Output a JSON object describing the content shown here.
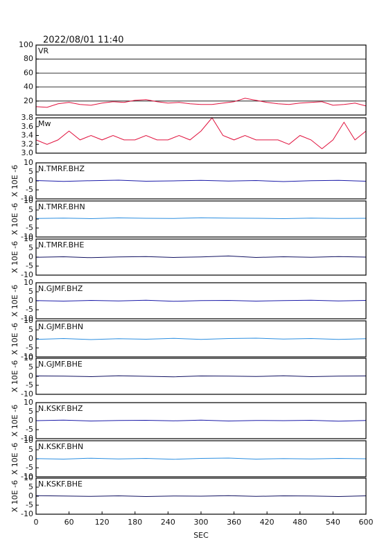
{
  "title": "2022/08/01 11:40",
  "chart_data": [
    {
      "type": "line",
      "label": "VR",
      "color": "#e0103c",
      "grid": true,
      "xlim": [
        0,
        600
      ],
      "ylim": [
        0,
        100
      ],
      "yticks": [
        20,
        40,
        60,
        80,
        100
      ],
      "x": [
        0,
        20,
        40,
        60,
        80,
        100,
        120,
        140,
        160,
        180,
        200,
        220,
        240,
        260,
        280,
        300,
        320,
        340,
        360,
        380,
        400,
        420,
        440,
        460,
        480,
        500,
        520,
        540,
        560,
        580,
        600
      ],
      "values": [
        12,
        11,
        16,
        18,
        15,
        14,
        17,
        19,
        18,
        21,
        22,
        19,
        17,
        18,
        16,
        15,
        15,
        17,
        19,
        24,
        21,
        18,
        16,
        15,
        17,
        18,
        19,
        14,
        15,
        17,
        13
      ]
    },
    {
      "type": "line",
      "label": "Mw",
      "color": "#e0103c",
      "grid": false,
      "xlim": [
        0,
        600
      ],
      "ylim": [
        3.0,
        3.8
      ],
      "yticks": [
        {
          "value": 3,
          "label": "3.0"
        },
        3.2,
        3.4,
        3.6,
        3.8
      ],
      "x": [
        0,
        20,
        40,
        60,
        80,
        100,
        120,
        140,
        160,
        180,
        200,
        220,
        240,
        260,
        280,
        300,
        320,
        340,
        360,
        380,
        400,
        420,
        440,
        460,
        480,
        500,
        520,
        540,
        560,
        580,
        600
      ],
      "values": [
        3.3,
        3.2,
        3.3,
        3.5,
        3.3,
        3.4,
        3.3,
        3.4,
        3.3,
        3.3,
        3.4,
        3.3,
        3.3,
        3.4,
        3.3,
        3.5,
        3.8,
        3.4,
        3.3,
        3.4,
        3.3,
        3.3,
        3.3,
        3.2,
        3.4,
        3.3,
        3.1,
        3.3,
        3.7,
        3.3,
        3.5
      ]
    },
    {
      "type": "line",
      "label": "N.TMRF.BHZ",
      "ylabel": "X 10E -6",
      "color": "#1a1aa8",
      "xlim": [
        0,
        600
      ],
      "ylim": [
        -10,
        10
      ],
      "yticks": [
        -10,
        -5,
        0,
        5,
        10
      ],
      "x": [
        0,
        50,
        100,
        150,
        200,
        250,
        300,
        350,
        400,
        450,
        500,
        550,
        600
      ],
      "values": [
        0.2,
        -0.3,
        0.1,
        0.4,
        -0.2,
        0,
        0.3,
        -0.1,
        0.2,
        -0.4,
        0.1,
        0.3,
        -0.2
      ]
    },
    {
      "type": "line",
      "label": "N.TMRF.BHN",
      "ylabel": "X 10E -6",
      "color": "#2a8de0",
      "xlim": [
        0,
        600
      ],
      "ylim": [
        -10,
        10
      ],
      "yticks": [
        -10,
        -5,
        0,
        5,
        10
      ],
      "x": [
        0,
        50,
        100,
        150,
        200,
        250,
        300,
        350,
        400,
        450,
        500,
        550,
        600
      ],
      "values": [
        0.3,
        0.5,
        0.2,
        0.6,
        0.4,
        0.3,
        0.7,
        0.5,
        0.4,
        0.2,
        0.5,
        0.3,
        0.4
      ]
    },
    {
      "type": "line",
      "label": "N.TMRF.BHE",
      "ylabel": "X 10E -6",
      "color": "#101060",
      "xlim": [
        0,
        600
      ],
      "ylim": [
        -10,
        10
      ],
      "yticks": [
        -10,
        -5,
        0,
        5,
        10
      ],
      "x": [
        0,
        50,
        100,
        150,
        200,
        250,
        300,
        350,
        400,
        450,
        500,
        550,
        600
      ],
      "values": [
        -0.1,
        0.2,
        -0.3,
        0.1,
        0.3,
        -0.2,
        0.1,
        0.6,
        -0.2,
        0.2,
        -0.1,
        0.3,
        0
      ]
    },
    {
      "type": "line",
      "label": "N.GJMF.BHZ",
      "ylabel": "X 10E -6",
      "color": "#1a1aa8",
      "xlim": [
        0,
        600
      ],
      "ylim": [
        -10,
        10
      ],
      "yticks": [
        -10,
        -5,
        0,
        5,
        10
      ],
      "x": [
        0,
        50,
        100,
        150,
        200,
        250,
        300,
        350,
        400,
        450,
        500,
        550,
        600
      ],
      "values": [
        0.1,
        -0.2,
        0.2,
        -0.1,
        0.3,
        -0.3,
        0.1,
        0.2,
        -0.2,
        0.1,
        0.3,
        -0.1,
        0.2
      ]
    },
    {
      "type": "line",
      "label": "N.GJMF.BHN",
      "ylabel": "X 10E -6",
      "color": "#2a8de0",
      "xlim": [
        0,
        600
      ],
      "ylim": [
        -10,
        10
      ],
      "yticks": [
        -10,
        -5,
        0,
        5,
        10
      ],
      "x": [
        0,
        50,
        100,
        150,
        200,
        250,
        300,
        350,
        400,
        450,
        500,
        550,
        600
      ],
      "values": [
        -0.3,
        0.2,
        -0.4,
        0.1,
        -0.2,
        0.3,
        -0.3,
        0.2,
        0.4,
        -0.1,
        0.2,
        -0.3,
        0.1
      ]
    },
    {
      "type": "line",
      "label": "N.GJMF.BHE",
      "ylabel": "X 10E -6",
      "color": "#101060",
      "xlim": [
        0,
        600
      ],
      "ylim": [
        -10,
        10
      ],
      "yticks": [
        -10,
        -5,
        0,
        5,
        10
      ],
      "x": [
        0,
        50,
        100,
        150,
        200,
        250,
        300,
        350,
        400,
        450,
        500,
        550,
        600
      ],
      "values": [
        0.2,
        0.1,
        -0.2,
        0.3,
        0,
        -0.3,
        0.2,
        0.1,
        -0.1,
        0.3,
        -0.2,
        0.1,
        0.2
      ]
    },
    {
      "type": "line",
      "label": "N.KSKF.BHZ",
      "ylabel": "X 10E -6",
      "color": "#1a1aa8",
      "xlim": [
        0,
        600
      ],
      "ylim": [
        -10,
        10
      ],
      "yticks": [
        -10,
        -5,
        0,
        5,
        10
      ],
      "x": [
        0,
        50,
        100,
        150,
        200,
        250,
        300,
        350,
        400,
        450,
        500,
        550,
        600
      ],
      "values": [
        0,
        0.3,
        -0.2,
        0.1,
        0.2,
        -0.1,
        0.3,
        -0.2,
        0.1,
        0,
        0.2,
        -0.3,
        0.1
      ]
    },
    {
      "type": "line",
      "label": "N.KSKF.BHN",
      "ylabel": "X 10E -6",
      "color": "#2a8de0",
      "xlim": [
        0,
        600
      ],
      "ylim": [
        -10,
        10
      ],
      "yticks": [
        -10,
        -5,
        0,
        5,
        10
      ],
      "x": [
        0,
        50,
        100,
        150,
        200,
        250,
        300,
        350,
        400,
        450,
        500,
        550,
        600
      ],
      "values": [
        0.1,
        -0.2,
        0.3,
        -0.1,
        0.2,
        -0.3,
        0.2,
        0.4,
        -0.2,
        0.1,
        -0.1,
        0.2,
        0
      ]
    },
    {
      "type": "line",
      "label": "N.KSKF.BHE",
      "ylabel": "X 10E -6",
      "color": "#101060",
      "xlim": [
        0,
        600
      ],
      "ylim": [
        -10,
        10
      ],
      "yticks": [
        -10,
        -5,
        0,
        5,
        10
      ],
      "x": [
        0,
        50,
        100,
        150,
        200,
        250,
        300,
        350,
        400,
        450,
        500,
        550,
        600
      ],
      "values": [
        0.3,
        0.1,
        -0.1,
        0.2,
        -0.2,
        0.1,
        0,
        0.3,
        -0.1,
        0.2,
        0.1,
        -0.2,
        0.2
      ],
      "xticks": [
        0,
        60,
        120,
        180,
        240,
        300,
        360,
        420,
        480,
        540,
        600
      ],
      "xlabel": "SEC"
    }
  ]
}
